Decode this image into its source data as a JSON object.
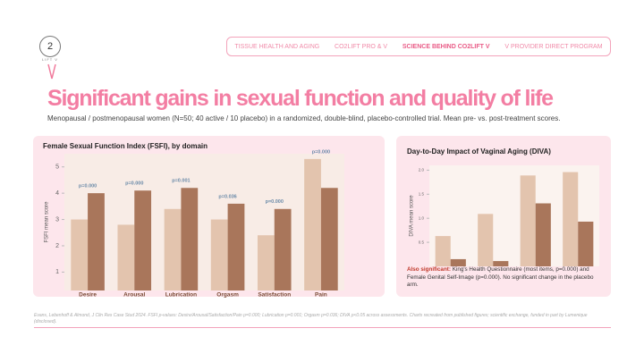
{
  "header": {
    "logo": "2",
    "logo_sub": "LIFT V",
    "nav": [
      "TISSUE HEALTH AND AGING",
      "CO2LIFT PRO & V",
      "SCIENCE BEHIND CO2LIFT V",
      "V PROVIDER DIRECT PROGRAM"
    ],
    "title": "Significant gains in sexual function and quality of life",
    "subtitle": "Menopausal / postmenopausal women (N=50; 40 active / 10 placebo) in a randomized, double-blind, placebo-controlled trial. Mean pre- vs. post-treatment scores."
  },
  "chart_data": [
    {
      "type": "bar",
      "title": "Female Sexual Function Index (FSFI), by domain",
      "y_label": "FSFI mean score",
      "categories": [
        "Desire",
        "Arousal",
        "Lubrication",
        "Orgasm",
        "Satisfaction",
        "Pain"
      ],
      "series": [
        {
          "color": "#e3c4ae",
          "values": [
            3.0,
            2.8,
            3.4,
            3.0,
            2.4,
            5.3
          ]
        },
        {
          "color": "#a9765b",
          "values": [
            4.0,
            4.1,
            4.2,
            3.6,
            3.4,
            4.2
          ]
        }
      ],
      "annotations": [
        "p=0.000",
        "p=0.000",
        "p=0.001",
        "p=0.036",
        "p=0.000",
        "p=0.000"
      ],
      "ylim": [
        0.3,
        5.5
      ],
      "yticks": [
        1,
        2,
        3,
        4,
        5
      ],
      "grid": false
    },
    {
      "type": "bar",
      "title": "Day-to-Day Impact of Vaginal Aging (DIVA)",
      "y_label": "DIVA mean score",
      "categories": [
        null,
        null,
        null,
        null
      ],
      "series": [
        {
          "color": "#e3c4ae",
          "values": [
            0.63,
            1.09,
            1.89,
            1.96
          ]
        },
        {
          "color": "#a9765b",
          "values": [
            0.15,
            0.11,
            1.31,
            0.93
          ]
        }
      ],
      "ylim": [
        0,
        2.1
      ],
      "yticks": [
        {
          "value": 0.5,
          "label": "0.5"
        },
        {
          "value": 1,
          "label": "1.0"
        },
        {
          "value": 1.5,
          "label": "1.5"
        },
        {
          "value": 2,
          "label": "2.0"
        }
      ],
      "grid": false,
      "note_label": "Also significant:",
      "note": "King's Health Questionnaire (most items, p=0.000) and Female Genital Self-Image (p=0.000). No significant change in the placebo arm."
    }
  ],
  "footer": "Evans, Lebenhoff & Almond, J Clin Res Case Stud 2024. FSFI p-values: Desire/Arousal/Satisfaction/Pain p=0.000; Lubrication p=0.001; Orgasm p=0.036; DIVA p<0.05 across assessments. Charts recreated from published figures; scientific exchange, funded in part by Lumenique (disclosed)."
}
